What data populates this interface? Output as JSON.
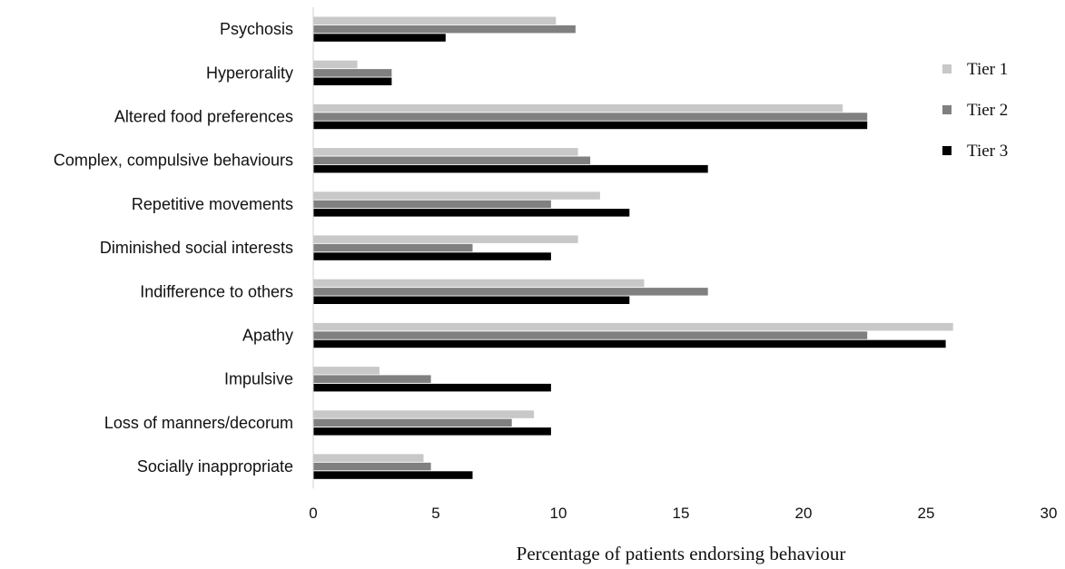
{
  "chart_data": {
    "type": "bar",
    "orientation": "horizontal",
    "categories": [
      "Psychosis",
      "Hyperorality",
      "Altered food preferences",
      "Complex, compulsive behaviours",
      "Repetitive movements",
      "Diminished social interests",
      "Indifference to others",
      "Apathy",
      "Impulsive",
      "Loss of manners/decorum",
      "Socially inappropriate"
    ],
    "series": [
      {
        "name": "Tier 1",
        "color": "#c8c8c8",
        "values": [
          9.9,
          1.8,
          21.6,
          10.8,
          11.7,
          10.8,
          13.5,
          26.1,
          2.7,
          9.0,
          4.5
        ]
      },
      {
        "name": "Tier 2",
        "color": "#808080",
        "values": [
          10.7,
          3.2,
          22.6,
          11.3,
          9.7,
          6.5,
          16.1,
          22.6,
          4.8,
          8.1,
          4.8
        ]
      },
      {
        "name": "Tier 3",
        "color": "#000000",
        "values": [
          5.4,
          3.2,
          22.6,
          16.1,
          12.9,
          9.7,
          12.9,
          25.8,
          9.7,
          9.7,
          6.5
        ]
      }
    ],
    "xlim": [
      0,
      30
    ],
    "xticks": [
      "0",
      "5",
      "10",
      "15",
      "20",
      "25",
      "30"
    ],
    "xlabel": "Percentage of patients endorsing behaviour",
    "ylabel": "",
    "title": "",
    "grid": false,
    "legend_position": "right"
  }
}
